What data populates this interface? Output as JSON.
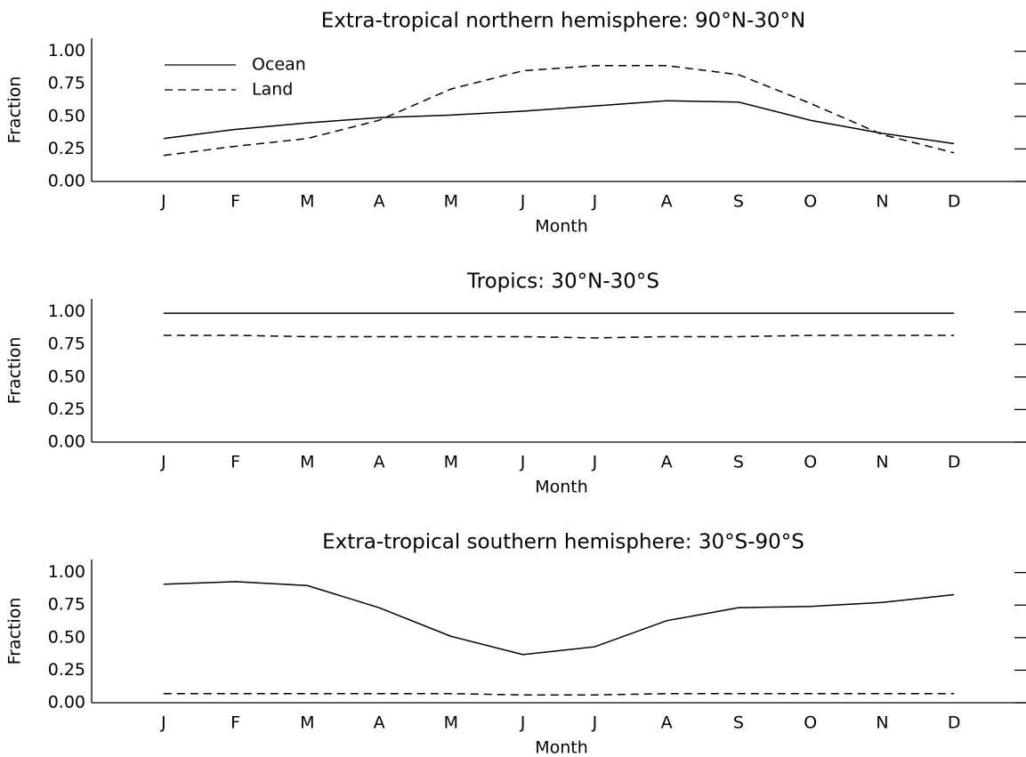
{
  "chart_data": [
    {
      "type": "line",
      "title": "Extra-tropical northern hemisphere: 90°N-30°N",
      "xlabel": "Month",
      "ylabel": "Fraction",
      "categories": [
        "J",
        "F",
        "M",
        "A",
        "M",
        "J",
        "J",
        "A",
        "S",
        "O",
        "N",
        "D"
      ],
      "series": [
        {
          "name": "Ocean",
          "color": "#000000",
          "linestyle": "solid",
          "values": [
            0.33,
            0.4,
            0.45,
            0.49,
            0.51,
            0.54,
            0.58,
            0.62,
            0.61,
            0.47,
            0.37,
            0.29
          ]
        },
        {
          "name": "Land",
          "color": "#000000",
          "linestyle": "dashed",
          "values": [
            0.2,
            0.27,
            0.33,
            0.47,
            0.71,
            0.85,
            0.89,
            0.89,
            0.82,
            0.6,
            0.36,
            0.22
          ]
        }
      ],
      "legend": "upper left",
      "ylim": [
        0,
        1.1
      ],
      "yticks": [
        {
          "value": 0,
          "label": "0.00"
        },
        {
          "value": 0.25,
          "label": "0.25"
        },
        {
          "value": 0.5,
          "label": "0.50"
        },
        {
          "value": 0.75,
          "label": "0.75"
        },
        {
          "value": 1,
          "label": "1.00"
        }
      ]
    },
    {
      "type": "line",
      "title": "Tropics: 30°N-30°S",
      "xlabel": "Month",
      "ylabel": "Fraction",
      "categories": [
        "J",
        "F",
        "M",
        "A",
        "M",
        "J",
        "J",
        "A",
        "S",
        "O",
        "N",
        "D"
      ],
      "series": [
        {
          "color": "#000000",
          "linestyle": "solid",
          "values": [
            0.99,
            0.99,
            0.99,
            0.99,
            0.99,
            0.99,
            0.99,
            0.99,
            0.99,
            0.99,
            0.99,
            0.99
          ]
        },
        {
          "color": "#000000",
          "linestyle": "dashed",
          "values": [
            0.82,
            0.82,
            0.81,
            0.81,
            0.81,
            0.81,
            0.8,
            0.81,
            0.81,
            0.82,
            0.82,
            0.82
          ]
        }
      ],
      "ylim": [
        0,
        1.1
      ],
      "yticks": [
        {
          "value": 0,
          "label": "0.00"
        },
        {
          "value": 0.25,
          "label": "0.25"
        },
        {
          "value": 0.5,
          "label": "0.50"
        },
        {
          "value": 0.75,
          "label": "0.75"
        },
        {
          "value": 1,
          "label": "1.00"
        }
      ]
    },
    {
      "type": "line",
      "title": "Extra-tropical southern hemisphere: 30°S-90°S",
      "xlabel": "Month",
      "ylabel": "Fraction",
      "categories": [
        "J",
        "F",
        "M",
        "A",
        "M",
        "J",
        "J",
        "A",
        "S",
        "O",
        "N",
        "D"
      ],
      "series": [
        {
          "color": "#000000",
          "linestyle": "solid",
          "values": [
            0.91,
            0.93,
            0.9,
            0.73,
            0.51,
            0.37,
            0.43,
            0.63,
            0.73,
            0.74,
            0.77,
            0.83
          ]
        },
        {
          "color": "#000000",
          "linestyle": "dashed",
          "values": [
            0.07,
            0.07,
            0.07,
            0.07,
            0.07,
            0.06,
            0.06,
            0.07,
            0.07,
            0.07,
            0.07,
            0.07
          ]
        }
      ],
      "ylim": [
        0,
        1.1
      ],
      "yticks": [
        {
          "value": 0,
          "label": "0.00"
        },
        {
          "value": 0.25,
          "label": "0.25"
        },
        {
          "value": 0.5,
          "label": "0.50"
        },
        {
          "value": 0.75,
          "label": "0.75"
        },
        {
          "value": 1,
          "label": "1.00"
        }
      ]
    }
  ]
}
